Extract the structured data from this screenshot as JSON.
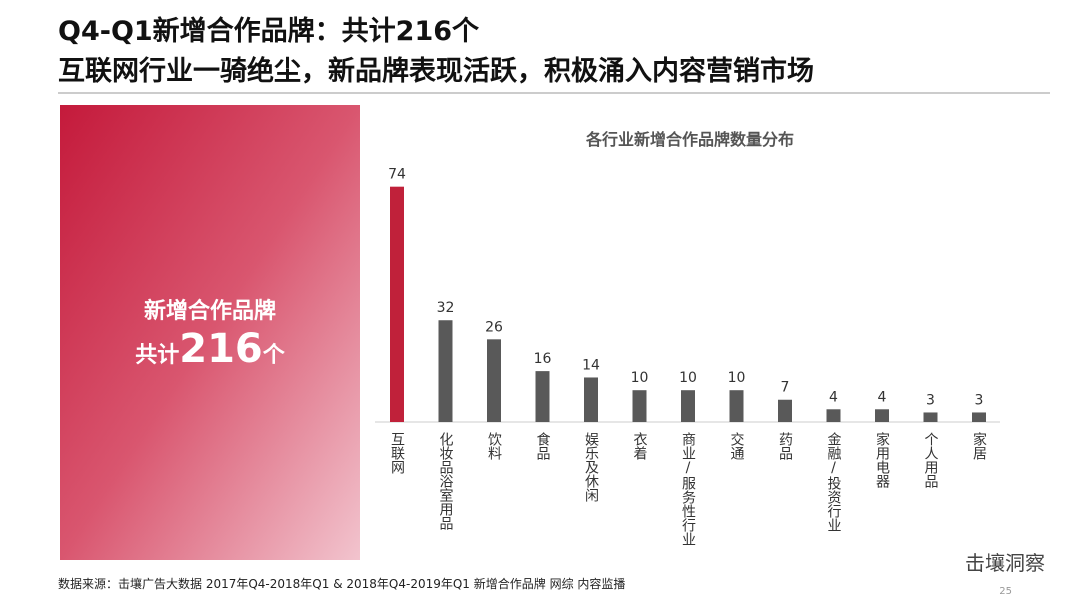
{
  "header": {
    "title": "Q4-Q1新增合作品牌：共计216个",
    "subtitle": "互联网行业一骑绝尘，新品牌表现活跃，积极涌入内容营销市场"
  },
  "panel": {
    "line1": "新增合作品牌",
    "prefix": "共计",
    "number": "216",
    "suffix": "个"
  },
  "chart_data": {
    "type": "bar",
    "title": "各行业新增合作品牌数量分布",
    "categories": [
      "互联网",
      "化妆品浴室用品",
      "饮料",
      "食品",
      "娱乐及休闲",
      "衣着",
      "商业/服务性行业",
      "交通",
      "药品",
      "金融/投资行业",
      "家用电器",
      "个人用品",
      "家居"
    ],
    "values": [
      74,
      32,
      26,
      16,
      14,
      10,
      10,
      10,
      7,
      4,
      4,
      3,
      3
    ],
    "colors": [
      "#c0213a",
      "#595959",
      "#595959",
      "#595959",
      "#595959",
      "#595959",
      "#595959",
      "#595959",
      "#595959",
      "#595959",
      "#595959",
      "#595959",
      "#595959"
    ]
  },
  "footer": {
    "source": "数据来源：击壤广告大数据 2017年Q4-2018年Q1 & 2018年Q4-2019年Q1 新增合作品牌 网综 内容监播",
    "brand": "击壤洞察",
    "page": "25"
  }
}
